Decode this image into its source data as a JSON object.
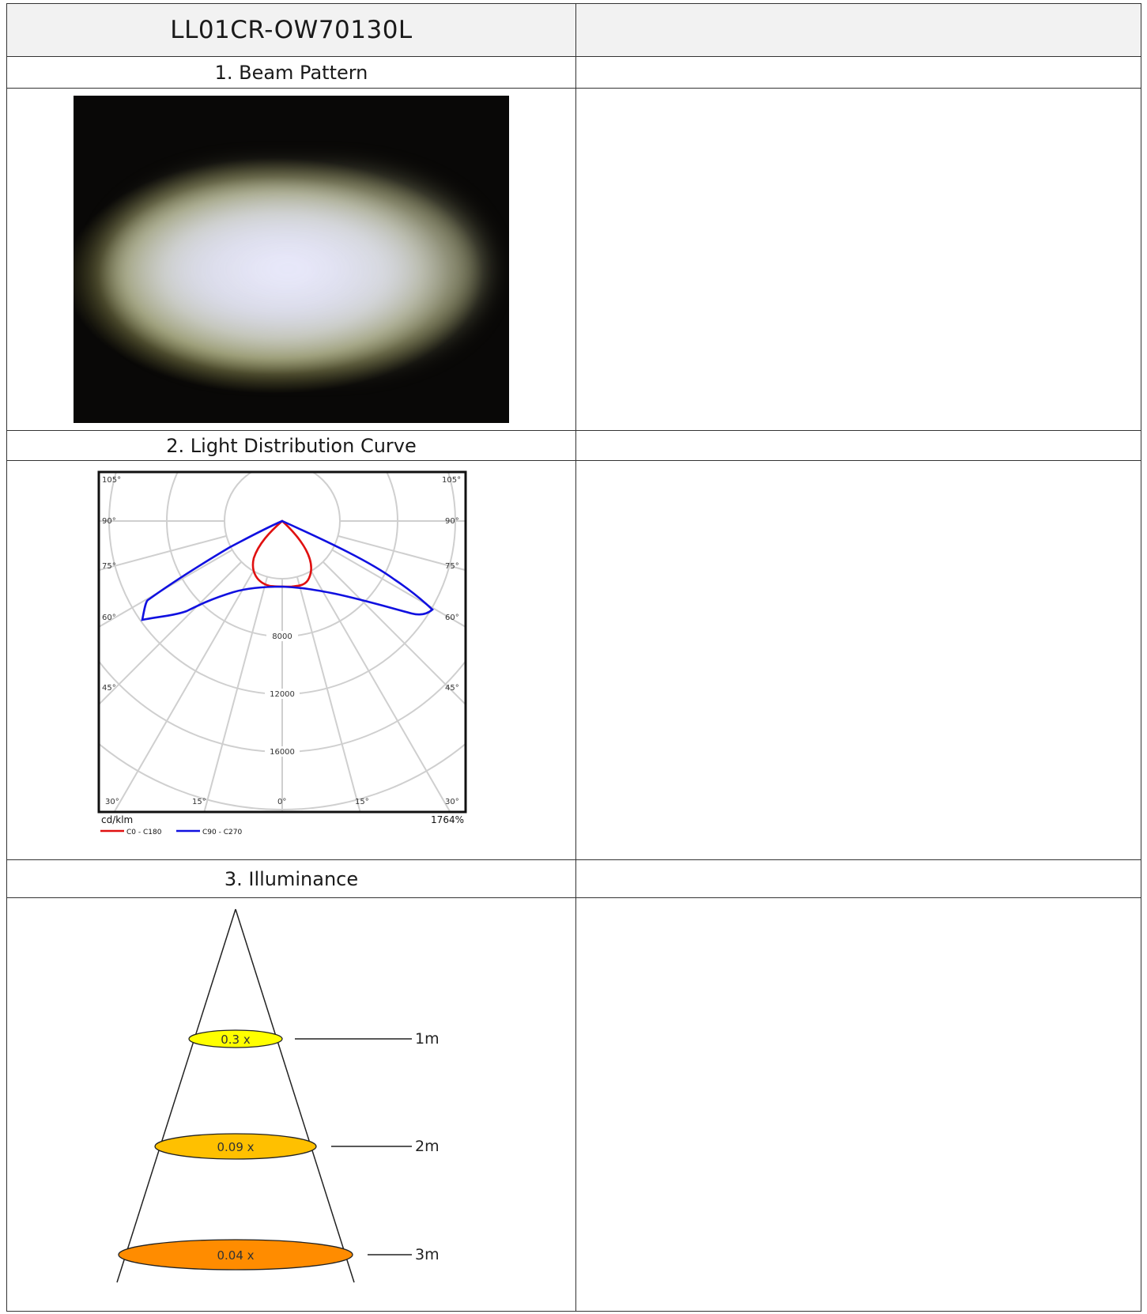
{
  "product": {
    "model": "LL01CR-OW70130L"
  },
  "sections": {
    "beam": {
      "label": "1. Beam Pattern"
    },
    "curve": {
      "label": "2. Light Distribution Curve"
    },
    "illuminance": {
      "label": "3. Illuminance"
    }
  },
  "chart_data": {
    "type": "polar",
    "unit": "cd/klm",
    "efficiency": "1764%",
    "angle_labels_left": [
      "105°",
      "90°",
      "75°",
      "60°",
      "45°",
      "30°",
      "15°"
    ],
    "angle_labels_right": [
      "105°",
      "90°",
      "75°",
      "60°",
      "45°",
      "30°",
      "15°"
    ],
    "bottom_angle_label": "0°",
    "radial_tick_labels": [
      "8000",
      "12000",
      "16000"
    ],
    "series": [
      {
        "name": "C0 - C180",
        "color": "#e01010"
      },
      {
        "name": "C90 - C270",
        "color": "#1010e0"
      }
    ]
  },
  "illuminance": {
    "rows": [
      {
        "value": "0.3 x",
        "distance": "1m",
        "color": "#ffff00"
      },
      {
        "value": "0.09 x",
        "distance": "2m",
        "color": "#ffc000"
      },
      {
        "value": "0.04 x",
        "distance": "3m",
        "color": "#ff8c00"
      }
    ]
  }
}
